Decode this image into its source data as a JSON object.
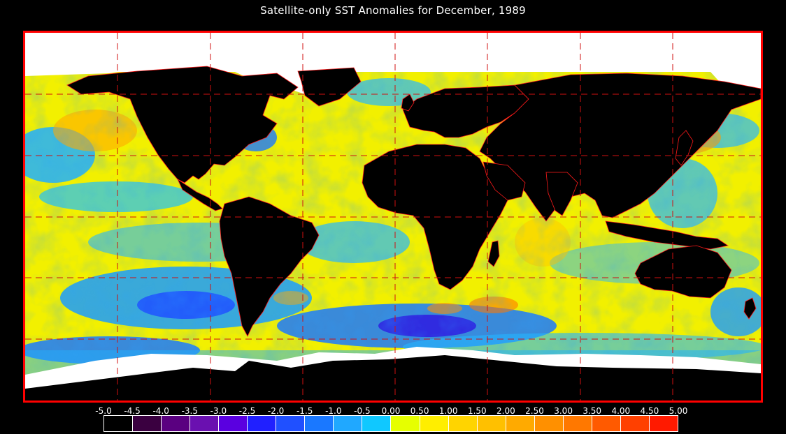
{
  "title": "Satellite-only SST Anomalies for December, 1989",
  "colors": {
    "frame": "#ff0000",
    "land": "#000000",
    "ice": "#ffffff",
    "borders": "#ff1a1a",
    "grid": "#d01010"
  },
  "legend": {
    "ticks": [
      "-5.0",
      "-4.5",
      "-4.0",
      "-3.5",
      "-3.0",
      "-2.5",
      "-2.0",
      "-1.5",
      "-1.0",
      "-0.5",
      "0.00",
      "0.50",
      "1.00",
      "1.50",
      "2.00",
      "2.50",
      "3.00",
      "3.50",
      "4.00",
      "4.50",
      "5.00"
    ],
    "bins": [
      {
        "color": "#000000"
      },
      {
        "color": "#3a0040"
      },
      {
        "color": "#5a0080"
      },
      {
        "color": "#6a10b0"
      },
      {
        "color": "#5a00e0"
      },
      {
        "color": "#2020ff"
      },
      {
        "color": "#2050ff"
      },
      {
        "color": "#1a78ff"
      },
      {
        "color": "#20a8ff"
      },
      {
        "color": "#10c8ff"
      },
      {
        "color": "#e6ff00"
      },
      {
        "color": "#ffee00"
      },
      {
        "color": "#ffd400"
      },
      {
        "color": "#ffc000"
      },
      {
        "color": "#ffaa00"
      },
      {
        "color": "#ff9000"
      },
      {
        "color": "#ff7800"
      },
      {
        "color": "#ff5a00"
      },
      {
        "color": "#ff4000"
      },
      {
        "color": "#ff1a00"
      }
    ]
  }
}
